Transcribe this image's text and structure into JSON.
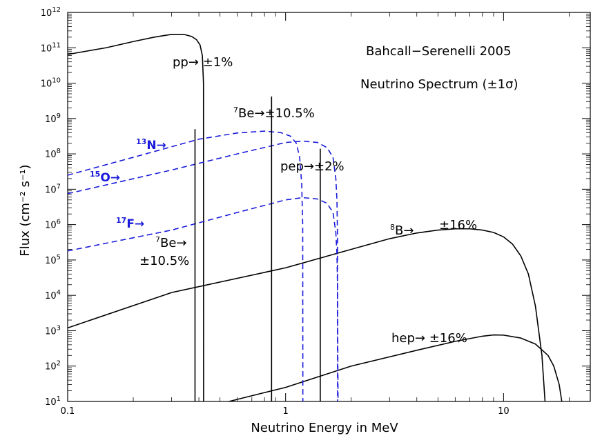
{
  "chart_data": {
    "type": "line",
    "title_line1": "Bahcall−Serenelli 2005",
    "title_line2": "Neutrino Spectrum (±1σ)",
    "xlabel": "Neutrino Energy in MeV",
    "ylabel": "Flux (cm⁻² s⁻¹)",
    "x_scale": "log",
    "y_scale": "log",
    "xlim": [
      0.1,
      25
    ],
    "ylim": [
      10,
      1000000000000.0
    ],
    "x_ticks": [
      {
        "value": 0.1,
        "label": "0.1"
      },
      {
        "value": 1,
        "label": "1"
      },
      {
        "value": 10,
        "label": "10"
      }
    ],
    "y_ticks": [
      {
        "value": 10.0,
        "mantissa": "10",
        "exp": "1"
      },
      {
        "value": 100.0,
        "mantissa": "10",
        "exp": "2"
      },
      {
        "value": 1000.0,
        "mantissa": "10",
        "exp": "3"
      },
      {
        "value": 10000.0,
        "mantissa": "10",
        "exp": "4"
      },
      {
        "value": 100000.0,
        "mantissa": "10",
        "exp": "5"
      },
      {
        "value": 1000000.0,
        "mantissa": "10",
        "exp": "6"
      },
      {
        "value": 10000000.0,
        "mantissa": "10",
        "exp": "7"
      },
      {
        "value": 100000000.0,
        "mantissa": "10",
        "exp": "8"
      },
      {
        "value": 1000000000.0,
        "mantissa": "10",
        "exp": "9"
      },
      {
        "value": 10000000000.0,
        "mantissa": "10",
        "exp": "10"
      },
      {
        "value": 100000000000.0,
        "mantissa": "10",
        "exp": "11"
      },
      {
        "value": 1000000000000.0,
        "mantissa": "10",
        "exp": "12"
      }
    ],
    "colors": {
      "black": "#000000",
      "blue": "#1a1adb"
    },
    "series": [
      {
        "name": "pp",
        "style": "solid",
        "color": "black",
        "x": [
          0.1,
          0.15,
          0.2,
          0.25,
          0.3,
          0.34,
          0.37,
          0.39,
          0.405,
          0.415,
          0.42,
          0.4205
        ],
        "y": [
          65000000000.0,
          100000000000.0,
          150000000000.0,
          200000000000.0,
          240000000000.0,
          240000000000.0,
          210000000000.0,
          170000000000.0,
          120000000000.0,
          60000000000.0,
          10000000000.0,
          10
        ]
      },
      {
        "name": "8B",
        "style": "solid",
        "color": "black",
        "x": [
          0.1,
          0.3,
          1,
          2,
          3,
          4,
          5,
          6,
          7,
          8,
          9,
          10,
          11,
          12,
          13,
          14,
          15,
          15.5
        ],
        "y": [
          1200.0,
          12000.0,
          60000.0,
          200000.0,
          400000.0,
          580000.0,
          700000.0,
          760000.0,
          760000.0,
          700000.0,
          600000.0,
          450000.0,
          280000.0,
          130000.0,
          40000.0,
          5000.0,
          200,
          10
        ]
      },
      {
        "name": "hep",
        "style": "solid",
        "color": "black",
        "x": [
          0.55,
          1,
          2,
          4,
          6,
          8,
          9,
          10,
          12,
          14,
          16,
          17,
          18,
          18.5
        ],
        "y": [
          10,
          25,
          100,
          280,
          500,
          700,
          760,
          750,
          620,
          420,
          200,
          100,
          30,
          10
        ]
      },
      {
        "name": "13N",
        "style": "dashed",
        "color": "blue",
        "x": [
          0.1,
          0.2,
          0.4,
          0.6,
          0.8,
          0.95,
          1.05,
          1.12,
          1.16,
          1.185,
          1.198,
          1.2
        ],
        "y": [
          25000000.0,
          80000000.0,
          260000000.0,
          390000000.0,
          440000000.0,
          400000000.0,
          320000000.0,
          200000000.0,
          80000000.0,
          15000000.0,
          1000000.0,
          10
        ]
      },
      {
        "name": "15O",
        "style": "dashed",
        "color": "blue",
        "x": [
          0.1,
          0.3,
          0.6,
          1,
          1.2,
          1.4,
          1.55,
          1.65,
          1.7,
          1.72,
          1.73,
          1.732
        ],
        "y": [
          7500000.0,
          35000000.0,
          100000000.0,
          210000000.0,
          230000000.0,
          210000000.0,
          150000000.0,
          80000000.0,
          20000000.0,
          5000000.0,
          500000.0,
          10
        ]
      },
      {
        "name": "17F",
        "style": "dashed",
        "color": "blue",
        "x": [
          0.1,
          0.3,
          0.6,
          1,
          1.2,
          1.4,
          1.55,
          1.65,
          1.7,
          1.72,
          1.73,
          1.74
        ],
        "y": [
          180000.0,
          700000.0,
          2200000.0,
          5000000.0,
          5800000.0,
          5300000.0,
          4000000.0,
          2200000.0,
          600000.0,
          150000.0,
          20000.0,
          10
        ]
      }
    ],
    "lines": [
      {
        "name": "7Be-0.38",
        "x": 0.384,
        "y": 500000000.0,
        "color": "black"
      },
      {
        "name": "7Be-0.86",
        "x": 0.862,
        "y": 4200000000.0,
        "color": "black"
      },
      {
        "name": "pep",
        "x": 1.442,
        "y": 140000000.0,
        "color": "black"
      }
    ],
    "annotations": {
      "pp": {
        "text": "pp→ ±1%"
      },
      "be7_high": {
        "sup": "7",
        "text": "Be→±10.5%"
      },
      "pep": {
        "text": "pep→±2%"
      },
      "n13": {
        "sup": "13",
        "text": "N→"
      },
      "o15": {
        "sup": "15",
        "text": "O→"
      },
      "f17": {
        "sup": "17",
        "text": "F→"
      },
      "be7_low_line1": {
        "sup": "7",
        "text": "Be→"
      },
      "be7_low_line2": {
        "text": "±10.5%"
      },
      "b8": {
        "sup": "8",
        "text": "B→"
      },
      "b8_unc": {
        "text": "±16%"
      },
      "hep": {
        "text": "hep→ ±16%"
      }
    }
  }
}
